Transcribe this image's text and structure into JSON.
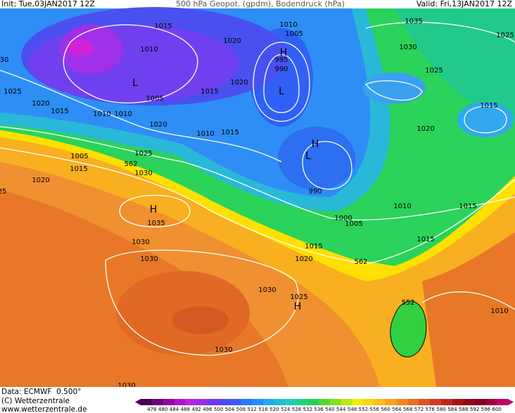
{
  "header": {
    "init": "Init: Tue,03JAN2017 12Z",
    "title": "500 hPa Geopot. (gpdm), Bodendruck (hPa)",
    "valid": "Valid: Fri,13JAN2017 12Z"
  },
  "footer": {
    "data": "Data: ECMWF  0.500°",
    "copyright": "(C) Wetterzentrale",
    "url": "www.wetterzentrale.de"
  },
  "colorbar": {
    "labels": [
      476,
      480,
      484,
      488,
      492,
      496,
      500,
      504,
      508,
      512,
      516,
      520,
      524,
      528,
      532,
      536,
      540,
      544,
      548,
      552,
      556,
      560,
      564,
      568,
      572,
      576,
      580,
      584,
      588,
      592,
      596,
      600
    ]
  },
  "isobar_labels": [
    1015,
    1020,
    1010,
    1010,
    1005,
    1035,
    1025,
    1030,
    30,
    1025,
    1020,
    1015,
    1010,
    1010,
    1005,
    1015,
    1020,
    995,
    990,
    1025,
    1015,
    1020,
    1020,
    1010,
    1015,
    1005,
    1025,
    562,
    1015,
    1030,
    1020,
    25,
    1035,
    990,
    1010,
    1015,
    1000,
    1005,
    1030,
    1015,
    1015,
    1020,
    562,
    1030,
    1030,
    1025,
    552,
    1010,
    1030,
    1030
  ],
  "centers": [
    "H",
    "L",
    "H",
    "L",
    "L",
    "H",
    "H"
  ]
}
